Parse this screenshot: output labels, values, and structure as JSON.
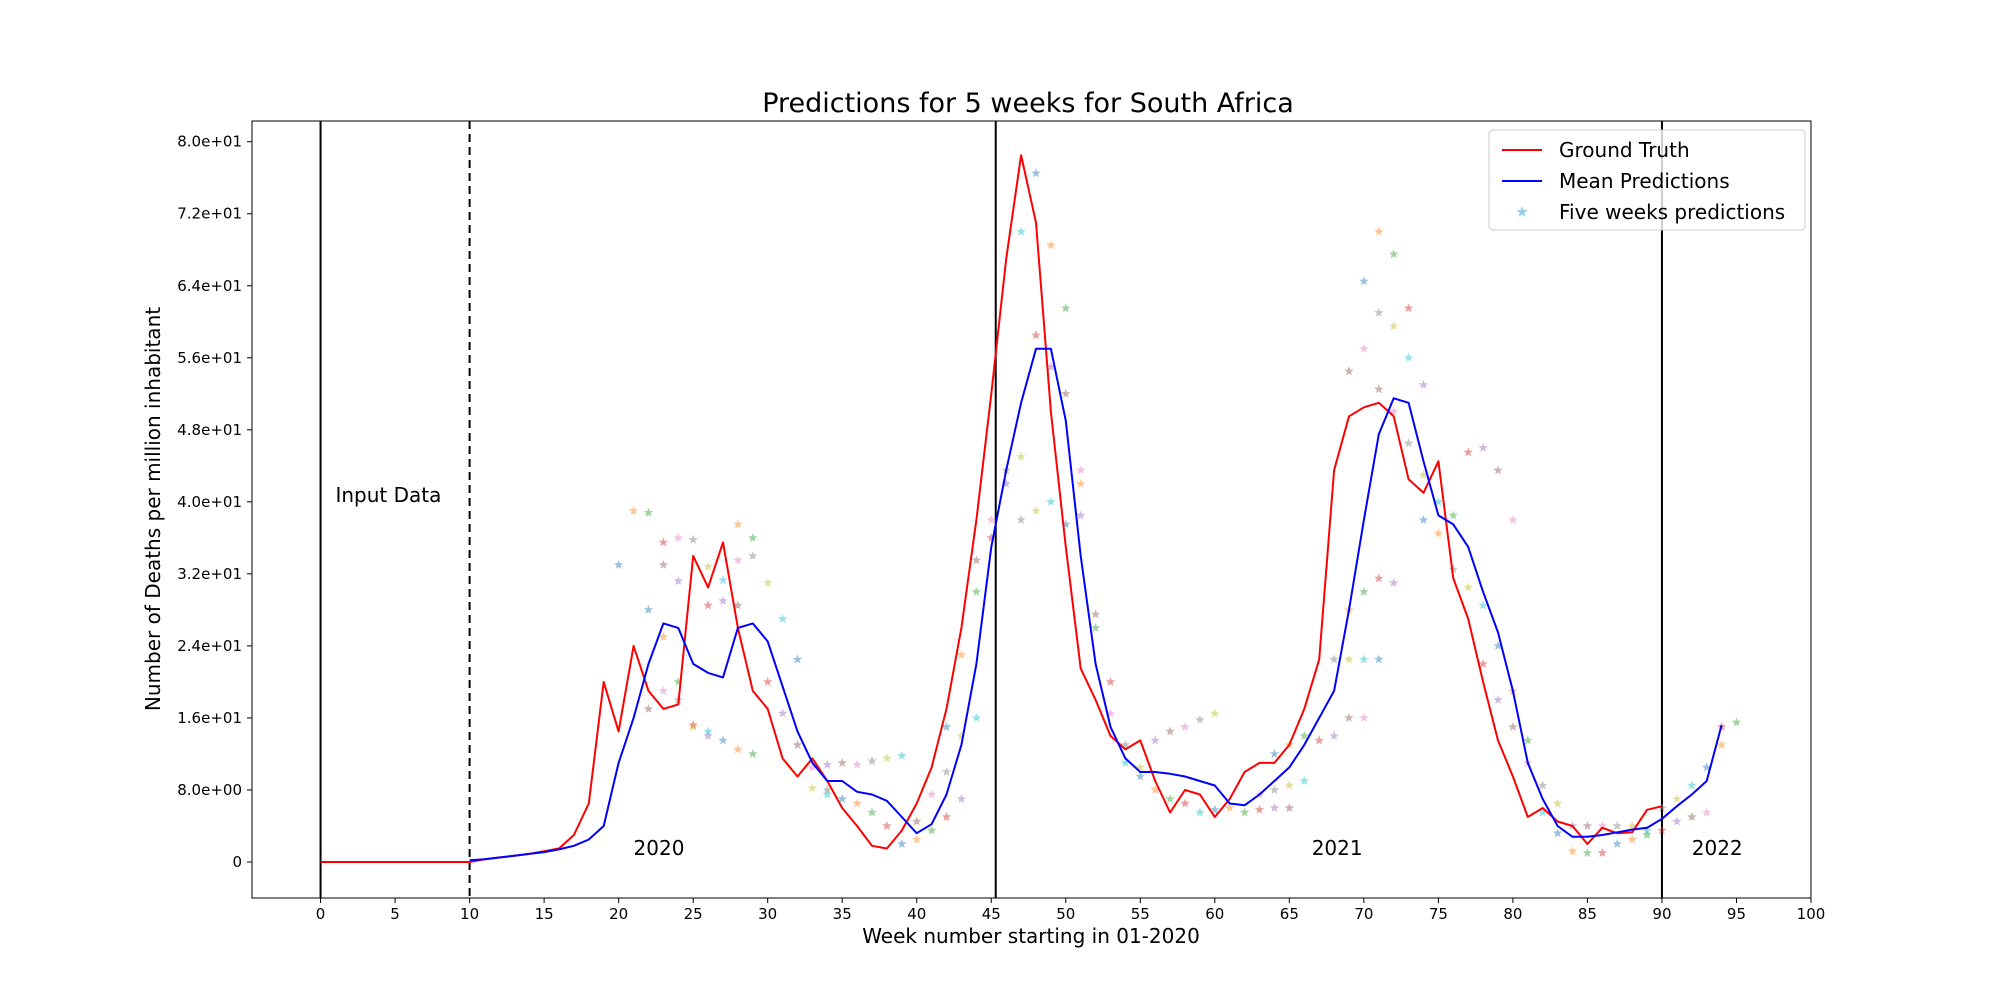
{
  "chart_data": {
    "type": "line",
    "title": "Predictions for 5 weeks for South Africa",
    "xlabel": "Week number starting in 01-2020",
    "ylabel": "Number of Deaths per million inhabitant",
    "xlim": [
      -4.6,
      100
    ],
    "ylim": [
      -4,
      82.3
    ],
    "xticks": [
      0,
      5,
      10,
      15,
      20,
      25,
      30,
      35,
      40,
      45,
      50,
      55,
      60,
      65,
      70,
      75,
      80,
      85,
      90,
      95,
      100
    ],
    "xtick_labels": [
      "0",
      "5",
      "10",
      "15",
      "20",
      "25",
      "30",
      "35",
      "40",
      "45",
      "50",
      "55",
      "60",
      "65",
      "70",
      "75",
      "80",
      "85",
      "90",
      "95",
      "100"
    ],
    "yticks": [
      0,
      8,
      16,
      24,
      32,
      40,
      48,
      56,
      64,
      72,
      80
    ],
    "ytick_labels": [
      "0",
      "8.0e+00",
      "1.6e+01",
      "2.4e+01",
      "3.2e+01",
      "4.0e+01",
      "4.8e+01",
      "5.6e+01",
      "6.4e+01",
      "7.2e+01",
      "8.0e+01"
    ],
    "grid": false,
    "legend_position": "top-right",
    "vlines": [
      {
        "x": 0,
        "style": "solid"
      },
      {
        "x": 10,
        "style": "dashed"
      },
      {
        "x": 45.3,
        "style": "solid"
      },
      {
        "x": 90,
        "style": "solid"
      }
    ],
    "annotations": [
      {
        "text": "Input Data",
        "x": 1,
        "y": 40
      },
      {
        "text": "2020",
        "x": 21,
        "y": 0.8
      },
      {
        "text": "2021",
        "x": 66.5,
        "y": 0.8
      },
      {
        "text": "2022",
        "x": 92,
        "y": 0.8
      }
    ],
    "series": [
      {
        "name": "Ground Truth",
        "kind": "line",
        "color": "#ff0000",
        "x": [
          0,
          1,
          2,
          3,
          4,
          5,
          6,
          7,
          8,
          9,
          10,
          11,
          12,
          13,
          14,
          15,
          16,
          17,
          18,
          19,
          20,
          21,
          22,
          23,
          24,
          25,
          26,
          27,
          28,
          29,
          30,
          31,
          32,
          33,
          34,
          35,
          36,
          37,
          38,
          39,
          40,
          41,
          42,
          43,
          44,
          45,
          46,
          47,
          48,
          49,
          50,
          51,
          52,
          53,
          54,
          55,
          56,
          57,
          58,
          59,
          60,
          61,
          62,
          63,
          64,
          65,
          66,
          67,
          68,
          69,
          70,
          71,
          72,
          73,
          74,
          75,
          76,
          77,
          78,
          79,
          80,
          81,
          82,
          83,
          84,
          85,
          86,
          87,
          88,
          89,
          90
        ],
        "y": [
          0,
          0,
          0,
          0,
          0,
          0,
          0,
          0,
          0,
          0,
          0,
          0.3,
          0.5,
          0.7,
          0.9,
          1.2,
          1.5,
          3,
          6.5,
          20,
          14.5,
          24,
          19,
          17,
          17.5,
          34,
          30.5,
          35.5,
          26,
          19,
          17,
          11.5,
          9.5,
          11.5,
          9,
          6,
          4,
          1.8,
          1.5,
          3.5,
          6.5,
          10.5,
          17,
          26,
          38,
          52,
          67,
          78.5,
          71,
          50,
          35,
          21.5,
          18,
          14,
          12.5,
          13.5,
          9,
          5.5,
          8,
          7.5,
          5,
          7,
          10,
          11,
          11,
          13,
          17,
          22.5,
          43.5,
          49.5,
          50.5,
          51,
          49.5,
          42.5,
          41,
          44.5,
          31.5,
          27,
          20,
          13.5,
          9.5,
          5,
          6,
          4.5,
          4,
          2,
          3.8,
          3.2,
          3.3,
          5.8,
          6.2
        ]
      },
      {
        "name": "Mean Predictions",
        "kind": "line",
        "color": "#0000ff",
        "x": [
          10,
          11,
          12,
          13,
          14,
          15,
          16,
          17,
          18,
          19,
          20,
          21,
          22,
          23,
          24,
          25,
          26,
          27,
          28,
          29,
          30,
          31,
          32,
          33,
          34,
          35,
          36,
          37,
          38,
          39,
          40,
          41,
          42,
          43,
          44,
          45,
          46,
          47,
          48,
          49,
          50,
          51,
          52,
          53,
          54,
          55,
          56,
          57,
          58,
          59,
          60,
          61,
          62,
          63,
          64,
          65,
          66,
          67,
          68,
          69,
          70,
          71,
          72,
          73,
          74,
          75,
          76,
          77,
          78,
          79,
          80,
          81,
          82,
          83,
          84,
          85,
          86,
          87,
          88,
          89,
          90,
          91,
          92,
          93,
          94
        ],
        "y": [
          0.2,
          0.3,
          0.5,
          0.7,
          0.9,
          1.1,
          1.4,
          1.8,
          2.5,
          4,
          11,
          16,
          22,
          26.5,
          26,
          22,
          21,
          20.5,
          26,
          26.5,
          24.5,
          19.5,
          14.5,
          11,
          9,
          9,
          7.8,
          7.5,
          6.8,
          5,
          3.2,
          4.2,
          7.5,
          13,
          22,
          35,
          43.5,
          51,
          57,
          57,
          49,
          34,
          22,
          15,
          11.5,
          10,
          10,
          9.8,
          9.5,
          9,
          8.5,
          6.5,
          6.3,
          7.5,
          9,
          10.5,
          13,
          16,
          19,
          28,
          38,
          47.5,
          51.5,
          51,
          44.5,
          38.5,
          37.5,
          35,
          30,
          25.5,
          19,
          11,
          7,
          4,
          2.8,
          2.8,
          3,
          3.3,
          3.6,
          3.8,
          4.8,
          6.2,
          7.5,
          9,
          15.2
        ]
      },
      {
        "name": "Five weeks predictions",
        "kind": "scatter",
        "marker": "star",
        "color": "#4fb4d8",
        "colors": [
          "#1f77b4",
          "#ff7f0e",
          "#2ca02c",
          "#d62728",
          "#9467bd",
          "#8c564b",
          "#e377c2",
          "#7f7f7f",
          "#bcbd22",
          "#17becf"
        ],
        "points": [
          [
            20,
            33
          ],
          [
            21,
            39
          ],
          [
            22,
            38.8
          ],
          [
            23,
            35.5
          ],
          [
            24,
            31.2
          ],
          [
            23,
            33
          ],
          [
            24,
            36
          ],
          [
            25,
            35.8
          ],
          [
            26,
            32.8
          ],
          [
            27,
            31.3
          ],
          [
            22,
            28
          ],
          [
            23,
            25
          ],
          [
            24,
            20
          ],
          [
            25,
            15.2
          ],
          [
            26,
            14
          ],
          [
            22,
            17
          ],
          [
            23,
            19
          ],
          [
            24,
            18
          ],
          [
            25,
            15
          ],
          [
            26,
            14.5
          ],
          [
            27,
            13.5
          ],
          [
            28,
            12.5
          ],
          [
            29,
            12
          ],
          [
            26,
            28.5
          ],
          [
            27,
            29
          ],
          [
            28,
            28.5
          ],
          [
            28,
            33.5
          ],
          [
            29,
            34
          ],
          [
            30,
            31
          ],
          [
            31,
            27
          ],
          [
            32,
            22.5
          ],
          [
            28,
            37.5
          ],
          [
            29,
            36
          ],
          [
            30,
            20
          ],
          [
            31,
            16.5
          ],
          [
            32,
            13
          ],
          [
            33,
            10.5
          ],
          [
            34,
            8
          ],
          [
            33,
            8.2
          ],
          [
            34,
            7.5
          ],
          [
            35,
            7
          ],
          [
            36,
            6.5
          ],
          [
            37,
            5.5
          ],
          [
            38,
            4
          ],
          [
            34,
            10.8
          ],
          [
            35,
            11
          ],
          [
            36,
            10.8
          ],
          [
            37,
            11.2
          ],
          [
            38,
            11.5
          ],
          [
            39,
            11.8
          ],
          [
            39,
            2
          ],
          [
            40,
            2.5
          ],
          [
            41,
            3.5
          ],
          [
            42,
            5
          ],
          [
            43,
            7
          ],
          [
            40,
            4.5
          ],
          [
            41,
            7.5
          ],
          [
            42,
            10
          ],
          [
            43,
            14
          ],
          [
            44,
            16
          ],
          [
            42,
            15
          ],
          [
            43,
            23
          ],
          [
            44,
            30
          ],
          [
            45,
            36
          ],
          [
            46,
            42
          ],
          [
            44,
            33.5
          ],
          [
            45,
            38
          ],
          [
            46,
            43.5
          ],
          [
            47,
            45
          ],
          [
            47,
            70
          ],
          [
            48,
            76.5
          ],
          [
            49,
            68.5
          ],
          [
            50,
            61.5
          ],
          [
            48,
            58.5
          ],
          [
            49,
            55
          ],
          [
            50,
            52
          ],
          [
            51,
            43.5
          ],
          [
            47,
            38
          ],
          [
            48,
            39
          ],
          [
            49,
            40
          ],
          [
            50,
            37.5
          ],
          [
            51,
            42
          ],
          [
            52,
            26
          ],
          [
            53,
            20
          ],
          [
            51,
            38.5
          ],
          [
            52,
            27.5
          ],
          [
            53,
            16.5
          ],
          [
            54,
            13
          ],
          [
            55,
            10.5
          ],
          [
            54,
            11
          ],
          [
            55,
            9.5
          ],
          [
            56,
            8
          ],
          [
            57,
            7
          ],
          [
            58,
            6.5
          ],
          [
            56,
            13.5
          ],
          [
            57,
            14.5
          ],
          [
            58,
            15
          ],
          [
            59,
            15.8
          ],
          [
            60,
            16.5
          ],
          [
            59,
            5.5
          ],
          [
            60,
            5.8
          ],
          [
            61,
            6
          ],
          [
            62,
            5.5
          ],
          [
            63,
            5.8
          ],
          [
            64,
            6
          ],
          [
            65,
            6
          ],
          [
            63,
            7.5
          ],
          [
            64,
            8
          ],
          [
            65,
            8.5
          ],
          [
            66,
            9
          ],
          [
            64,
            12
          ],
          [
            65,
            13
          ],
          [
            66,
            14
          ],
          [
            67,
            13.5
          ],
          [
            68,
            14
          ],
          [
            69,
            16
          ],
          [
            70,
            16
          ],
          [
            68,
            22.5
          ],
          [
            69,
            22.5
          ],
          [
            70,
            22.5
          ],
          [
            71,
            22.5
          ],
          [
            69,
            28
          ],
          [
            70,
            30
          ],
          [
            71,
            31.5
          ],
          [
            72,
            31
          ],
          [
            69,
            54.5
          ],
          [
            70,
            57
          ],
          [
            71,
            61
          ],
          [
            72,
            59.5
          ],
          [
            73,
            56
          ],
          [
            70,
            64.5
          ],
          [
            71,
            70
          ],
          [
            72,
            67.5
          ],
          [
            73,
            61.5
          ],
          [
            74,
            53
          ],
          [
            71,
            52.5
          ],
          [
            72,
            50
          ],
          [
            73,
            46.5
          ],
          [
            74,
            43
          ],
          [
            75,
            40
          ],
          [
            74,
            38
          ],
          [
            75,
            36.5
          ],
          [
            76,
            38.5
          ],
          [
            77,
            45.5
          ],
          [
            78,
            46
          ],
          [
            79,
            43.5
          ],
          [
            80,
            38
          ],
          [
            76,
            32.5
          ],
          [
            77,
            30.5
          ],
          [
            78,
            28.5
          ],
          [
            79,
            24
          ],
          [
            80,
            19
          ],
          [
            81,
            13.5
          ],
          [
            78,
            22
          ],
          [
            79,
            18
          ],
          [
            80,
            15
          ],
          [
            81,
            11
          ],
          [
            82,
            8.5
          ],
          [
            83,
            6.5
          ],
          [
            82,
            5.5
          ],
          [
            83,
            3.2
          ],
          [
            84,
            1.2
          ],
          [
            85,
            1
          ],
          [
            86,
            1
          ],
          [
            84,
            4
          ],
          [
            85,
            4
          ],
          [
            86,
            4
          ],
          [
            87,
            4
          ],
          [
            88,
            4
          ],
          [
            89,
            3.5
          ],
          [
            87,
            2
          ],
          [
            88,
            2.5
          ],
          [
            89,
            3
          ],
          [
            90,
            3.5
          ],
          [
            91,
            4.5
          ],
          [
            92,
            5
          ],
          [
            93,
            5.5
          ],
          [
            90,
            6
          ],
          [
            91,
            7
          ],
          [
            92,
            8.5
          ],
          [
            93,
            10.5
          ],
          [
            94,
            13
          ],
          [
            95,
            15.5
          ],
          [
            94,
            15
          ]
        ]
      }
    ]
  }
}
